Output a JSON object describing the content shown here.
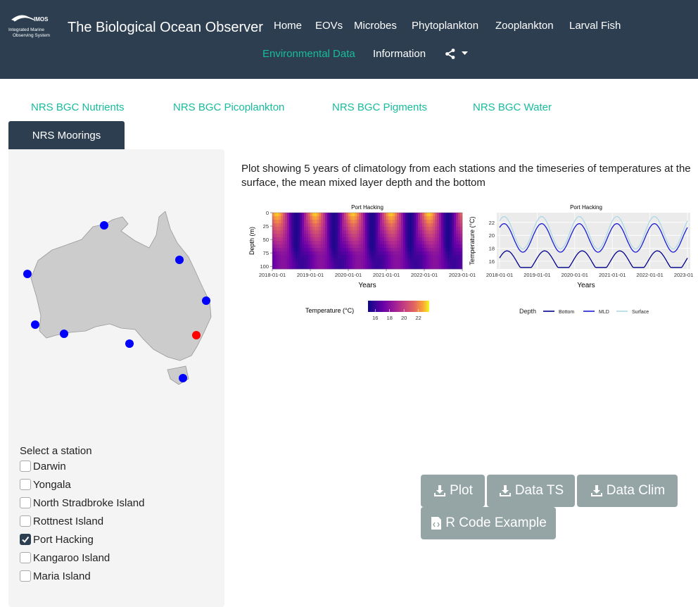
{
  "navbar": {
    "logo_text": "IMOS",
    "logo_sub1": "Integrated Marine",
    "logo_sub2": "Observing System",
    "title": "The Biological Ocean Observer",
    "items": [
      {
        "label": "Home"
      },
      {
        "label": "EOVs"
      },
      {
        "label": "Microbes"
      },
      {
        "label": "Phytoplankton"
      },
      {
        "label": "Zooplankton"
      },
      {
        "label": "Larval Fish"
      },
      {
        "label": "Environmental Data"
      },
      {
        "label": "Information"
      }
    ],
    "share_icon": "share-icon",
    "accent": "#18bc9c",
    "bg": "#2c3e50"
  },
  "tabs": [
    {
      "label": "NRS BGC Nutrients"
    },
    {
      "label": "NRS BGC Picoplankton"
    },
    {
      "label": "NRS BGC Pigments"
    },
    {
      "label": "NRS BGC Water"
    },
    {
      "label": "NRS Moorings"
    }
  ],
  "sidebar": {
    "select_label": "Select a station",
    "stations": [
      {
        "name": "Darwin",
        "checked": false
      },
      {
        "name": "Yongala",
        "checked": false
      },
      {
        "name": "North Stradbroke Island",
        "checked": false
      },
      {
        "name": "Rottnest Island",
        "checked": false
      },
      {
        "name": "Port Hacking",
        "checked": true
      },
      {
        "name": "Kangaroo Island",
        "checked": false
      },
      {
        "name": "Maria Island",
        "checked": false
      }
    ],
    "marker_color": "#0000ff",
    "selected_marker_color": "#ff0000"
  },
  "main": {
    "description": "Plot showing 5 years of climatology from each stations and the timeseries of temperatures at the surface, the mean mixed layer depth and the bottom"
  },
  "chart_data": [
    {
      "type": "heatmap",
      "title": "Port Hacking",
      "xlabel": "Years",
      "ylabel": "Depth (m)",
      "x_ticks": [
        "2018-01-01",
        "2019-01-01",
        "2020-01-01",
        "2021-01-01",
        "2022-01-01",
        "2023-01-01"
      ],
      "y_ticks": [
        "0",
        "25",
        "50",
        "75",
        "100"
      ],
      "legend_title": "Temperature (°C)",
      "legend_ticks": [
        "16",
        "18",
        "20",
        "22"
      ],
      "color_range": [
        15,
        23.5
      ]
    },
    {
      "type": "line",
      "title": "Port Hacking",
      "xlabel": "Years",
      "ylabel": "Temperature (°C)",
      "x_ticks": [
        "2018-01-01",
        "2019-01-01",
        "2020-01-01",
        "2021-01-01",
        "2022-01-01",
        "2023-01-01"
      ],
      "y_ticks": [
        "16",
        "18",
        "20",
        "22"
      ],
      "ylim": [
        14.8,
        23.5
      ],
      "legend_title": "Depth",
      "series": [
        {
          "name": "Bottom",
          "color": "#00008b",
          "mean": 16.0,
          "amp": 1.6
        },
        {
          "name": "MLD",
          "color": "#1c1cd6",
          "mean": 19.6,
          "amp": 2.2
        },
        {
          "name": "Surface",
          "color": "#add8e6",
          "mean": 20.4,
          "amp": 2.5
        }
      ]
    }
  ],
  "buttons": {
    "plot": "Plot",
    "data_ts": "Data TS",
    "data_clim": "Data Clim",
    "r_code": "R Code Example"
  }
}
